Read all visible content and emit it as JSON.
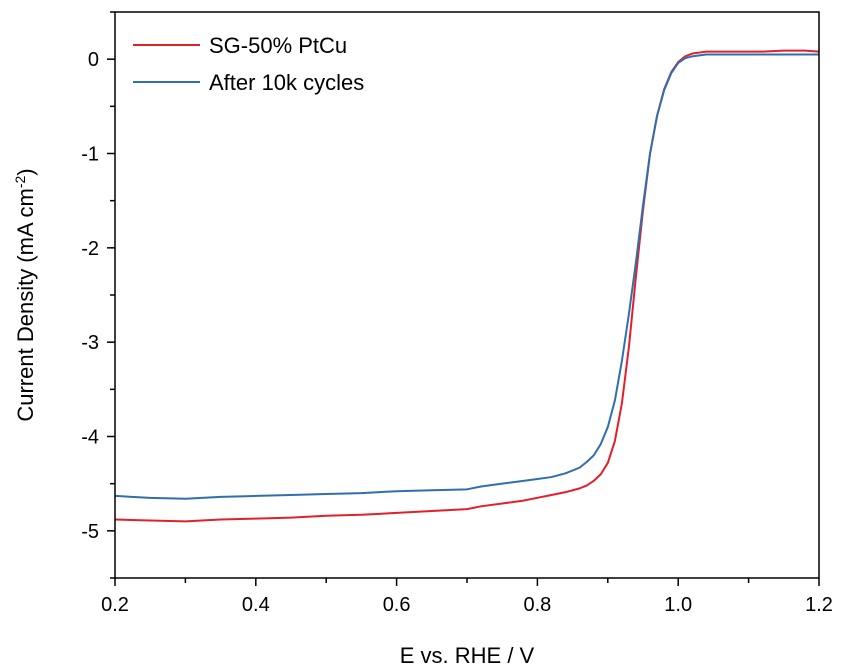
{
  "chart_data": {
    "type": "line",
    "title": "",
    "xlabel": "E vs. RHE / V",
    "ylabel_main": "Current Density (mA cm",
    "ylabel_sup": "-2",
    "ylabel_end": ")",
    "xlim": [
      0.2,
      1.2
    ],
    "ylim": [
      -5.5,
      0.5
    ],
    "xticks": [
      0.2,
      0.4,
      0.6,
      0.8,
      1.0,
      1.2
    ],
    "xtick_labels": [
      "0.2",
      "0.4",
      "0.6",
      "0.8",
      "1.0",
      "1.2"
    ],
    "yticks": [
      0,
      -1,
      -2,
      -3,
      -4,
      -5
    ],
    "ytick_labels": [
      "0",
      "-1",
      "-2",
      "-3",
      "-4",
      "-5"
    ],
    "grid": false,
    "legend_position": "top-left",
    "series": [
      {
        "name": "SG-50% PtCu",
        "color": "#e3202a",
        "x": [
          0.2,
          0.25,
          0.3,
          0.35,
          0.4,
          0.45,
          0.5,
          0.55,
          0.6,
          0.65,
          0.7,
          0.72,
          0.75,
          0.78,
          0.8,
          0.82,
          0.84,
          0.86,
          0.87,
          0.88,
          0.89,
          0.9,
          0.91,
          0.92,
          0.93,
          0.94,
          0.95,
          0.96,
          0.97,
          0.98,
          0.99,
          1.0,
          1.01,
          1.02,
          1.03,
          1.04,
          1.05,
          1.06,
          1.08,
          1.1,
          1.12,
          1.15,
          1.18,
          1.2
        ],
        "values": [
          -4.88,
          -4.89,
          -4.9,
          -4.88,
          -4.87,
          -4.86,
          -4.84,
          -4.83,
          -4.81,
          -4.79,
          -4.77,
          -4.74,
          -4.71,
          -4.68,
          -4.65,
          -4.62,
          -4.59,
          -4.55,
          -4.52,
          -4.47,
          -4.4,
          -4.28,
          -4.05,
          -3.65,
          -3.05,
          -2.3,
          -1.6,
          -1.0,
          -0.6,
          -0.32,
          -0.14,
          -0.03,
          0.03,
          0.06,
          0.07,
          0.08,
          0.08,
          0.08,
          0.08,
          0.08,
          0.08,
          0.09,
          0.09,
          0.08
        ]
      },
      {
        "name": "After 10k cycles",
        "color": "#2f6fb0",
        "x": [
          0.2,
          0.25,
          0.3,
          0.35,
          0.4,
          0.45,
          0.5,
          0.55,
          0.6,
          0.65,
          0.7,
          0.72,
          0.75,
          0.78,
          0.8,
          0.82,
          0.84,
          0.86,
          0.87,
          0.88,
          0.89,
          0.9,
          0.91,
          0.92,
          0.93,
          0.94,
          0.95,
          0.96,
          0.97,
          0.98,
          0.99,
          1.0,
          1.01,
          1.02,
          1.03,
          1.04,
          1.05,
          1.06,
          1.08,
          1.1,
          1.12,
          1.15,
          1.18,
          1.2
        ],
        "values": [
          -4.63,
          -4.65,
          -4.66,
          -4.64,
          -4.63,
          -4.62,
          -4.61,
          -4.6,
          -4.58,
          -4.57,
          -4.56,
          -4.53,
          -4.5,
          -4.47,
          -4.45,
          -4.43,
          -4.39,
          -4.33,
          -4.27,
          -4.2,
          -4.08,
          -3.9,
          -3.62,
          -3.2,
          -2.7,
          -2.15,
          -1.55,
          -1.0,
          -0.6,
          -0.33,
          -0.15,
          -0.04,
          0.01,
          0.03,
          0.04,
          0.05,
          0.05,
          0.05,
          0.05,
          0.05,
          0.05,
          0.05,
          0.05,
          0.05
        ]
      }
    ]
  }
}
